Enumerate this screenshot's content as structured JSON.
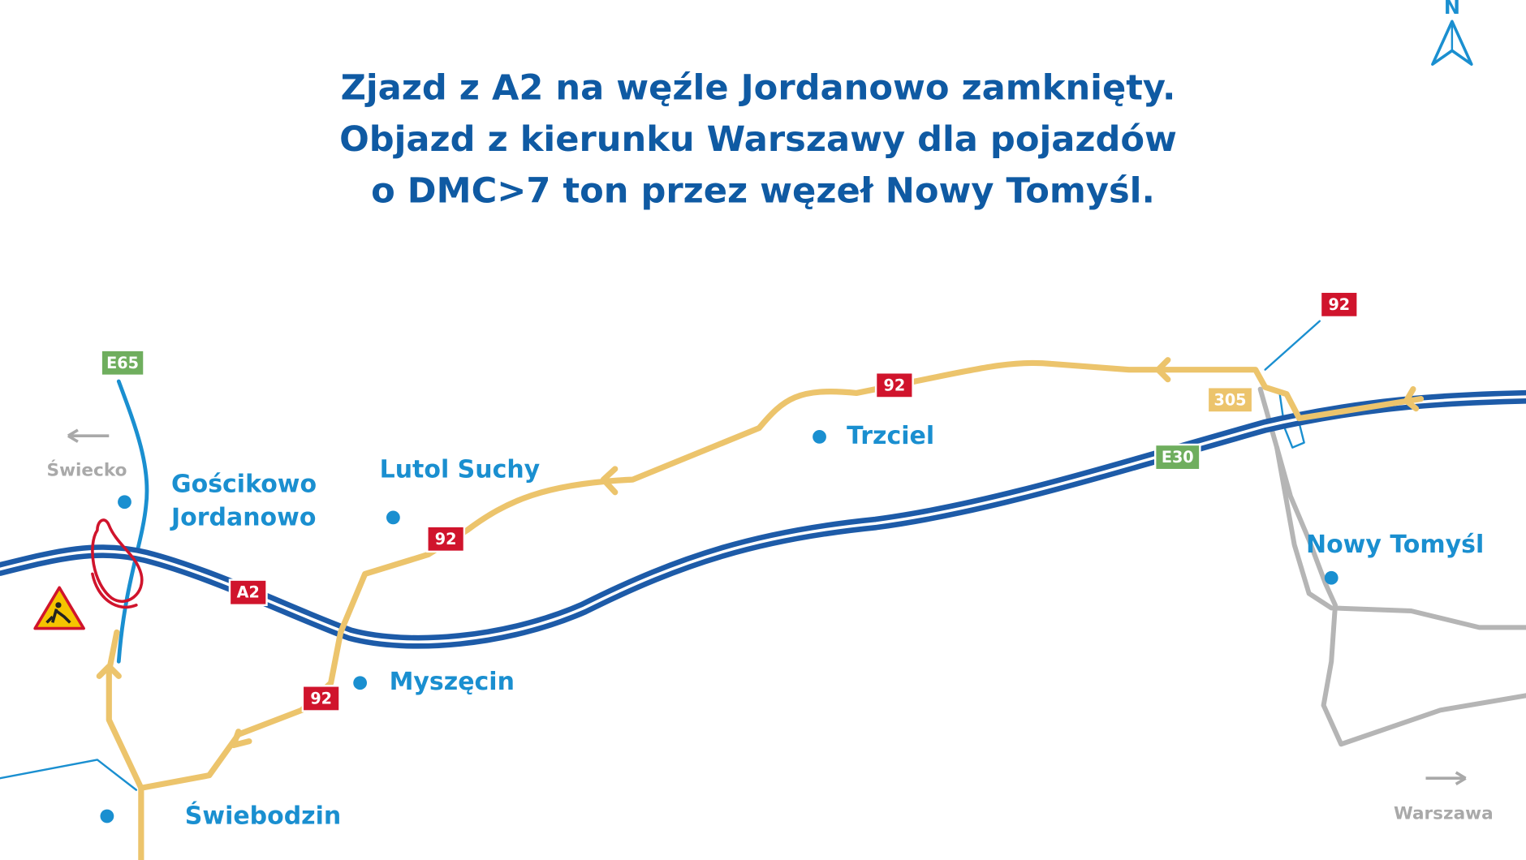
{
  "title": {
    "lines": [
      "Zjazd z A2 na węźle Jordanowo zamknięty.",
      "Objazd z kierunku Warszawy dla pojazdów",
      "o DMC>7 ton przez węzeł Nowy Tomyśl."
    ]
  },
  "compass": "N",
  "directions": [
    "Świecko",
    "Warszawa"
  ],
  "places": [
    {
      "lines": [
        "Gościkowo",
        "Jordanowo"
      ]
    },
    {
      "lines": [
        "Lutol Suchy"
      ]
    },
    {
      "lines": [
        "Trzciel"
      ]
    },
    {
      "lines": [
        "Nowy Tomyśl"
      ]
    },
    {
      "lines": [
        "Myszęcin"
      ]
    },
    {
      "lines": [
        "Świebodzin"
      ]
    }
  ],
  "road_badges": [
    "E65",
    "A2",
    "92",
    "92",
    "92",
    "92",
    "305",
    "E30"
  ]
}
